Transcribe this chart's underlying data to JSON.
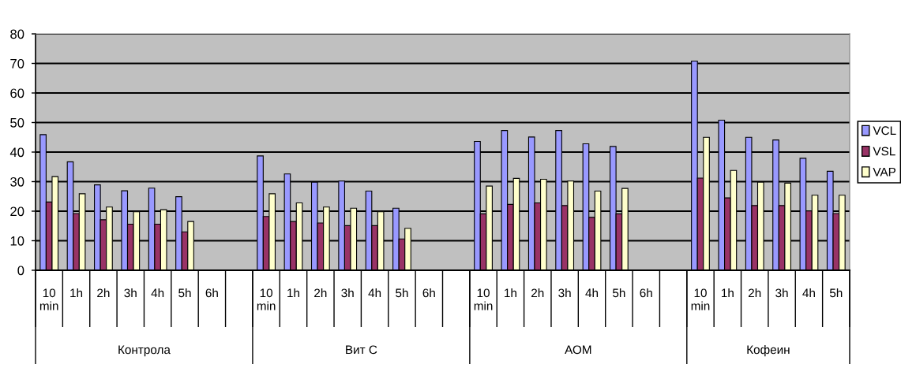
{
  "chart_data": {
    "type": "bar",
    "categories": [
      "10 min",
      "1h",
      "2h",
      "3h",
      "4h",
      "5h",
      "6h",
      null,
      "10 min",
      "1h",
      "2h",
      "3h",
      "4h",
      "5h",
      "6h",
      null,
      "10 min",
      "1h",
      "2h",
      "3h",
      "4h",
      "5h",
      "6h",
      null,
      "10 min",
      "1h",
      "2h",
      "3h",
      "4h",
      "5h"
    ],
    "series": [
      {
        "name": "VCL",
        "color": "#9999ff",
        "values": [
          45.9,
          36.7,
          28.9,
          26.9,
          27.8,
          24.9,
          null,
          null,
          38.7,
          32.6,
          29.8,
          30.2,
          26.8,
          21.0,
          null,
          null,
          43.6,
          47.3,
          45.1,
          47.3,
          42.8,
          41.9,
          null,
          null,
          70.8,
          50.8,
          45.0,
          44.1,
          37.9,
          33.5
        ]
      },
      {
        "name": "VSL",
        "color": "#993366",
        "values": [
          23.1,
          19.2,
          17.1,
          15.6,
          15.6,
          13.0,
          null,
          null,
          18.2,
          16.5,
          16.0,
          15.1,
          15.1,
          10.6,
          null,
          null,
          19.1,
          22.3,
          22.8,
          21.9,
          17.9,
          19.1,
          null,
          null,
          31.2,
          24.5,
          21.9,
          21.9,
          20.1,
          19.2
        ]
      },
      {
        "name": "VAP",
        "color": "#ffffcc",
        "values": [
          31.7,
          25.9,
          21.4,
          19.8,
          20.5,
          16.5,
          null,
          null,
          25.9,
          22.8,
          21.4,
          21.0,
          19.8,
          14.2,
          null,
          null,
          28.5,
          31.1,
          30.8,
          30.2,
          26.8,
          27.7,
          null,
          null,
          45.0,
          33.8,
          29.8,
          29.5,
          25.4,
          25.4
        ]
      }
    ],
    "ylim": [
      0,
      80
    ],
    "yticks": [
      0,
      10,
      20,
      30,
      40,
      50,
      60,
      70,
      80
    ],
    "grid": "y",
    "legend": "right",
    "annotations": [
      "Контрола",
      "Вит С",
      "АОМ",
      "Кофеин"
    ]
  }
}
